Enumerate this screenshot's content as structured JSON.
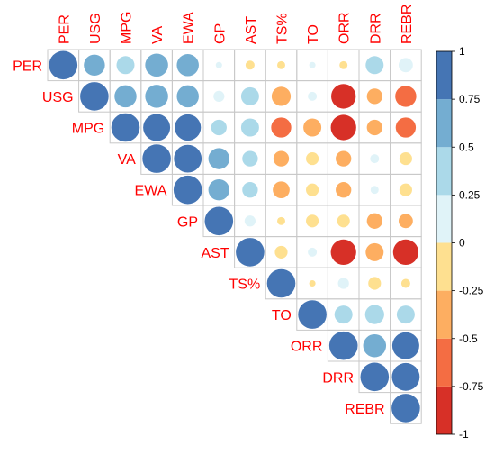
{
  "chart_data": {
    "type": "heatmap",
    "subtype": "correlation-circles-upper",
    "variables": [
      "PER",
      "USG",
      "MPG",
      "VA",
      "EWA",
      "GP",
      "AST",
      "TS%",
      "TO",
      "ORR",
      "DRR",
      "REBR"
    ],
    "matrix": [
      [
        1.0,
        0.55,
        0.4,
        0.65,
        0.6,
        0.05,
        -0.1,
        -0.08,
        0.05,
        -0.08,
        0.4,
        0.25
      ],
      [
        0.55,
        1.0,
        0.6,
        0.65,
        0.6,
        0.15,
        0.4,
        -0.45,
        0.1,
        -0.75,
        -0.3,
        -0.55
      ],
      [
        0.4,
        0.6,
        1.0,
        0.9,
        0.85,
        0.3,
        0.4,
        -0.5,
        -0.4,
        -0.8,
        -0.3,
        -0.5
      ],
      [
        0.65,
        0.65,
        0.9,
        1.0,
        0.95,
        0.55,
        0.3,
        -0.3,
        -0.2,
        -0.3,
        0.1,
        -0.2
      ],
      [
        0.6,
        0.6,
        0.85,
        0.95,
        1.0,
        0.55,
        0.3,
        -0.35,
        -0.2,
        -0.3,
        0.08,
        -0.2
      ],
      [
        0.05,
        0.15,
        0.3,
        0.55,
        0.55,
        1.0,
        0.15,
        -0.08,
        -0.2,
        -0.2,
        -0.3,
        -0.25
      ],
      [
        -0.1,
        0.4,
        0.4,
        0.3,
        0.3,
        0.15,
        1.0,
        -0.2,
        0.1,
        -0.8,
        -0.4,
        -0.8
      ],
      [
        -0.08,
        -0.45,
        -0.5,
        -0.3,
        -0.35,
        -0.08,
        -0.2,
        1.0,
        -0.05,
        0.15,
        -0.2,
        -0.1
      ],
      [
        0.05,
        0.1,
        -0.4,
        -0.2,
        -0.2,
        -0.2,
        0.1,
        -0.05,
        1.0,
        0.4,
        0.45,
        0.4
      ],
      [
        -0.08,
        -0.75,
        -0.8,
        -0.3,
        -0.3,
        -0.2,
        -0.8,
        0.15,
        0.4,
        1.0,
        0.65,
        0.9
      ],
      [
        0.4,
        -0.3,
        -0.3,
        0.1,
        0.08,
        -0.3,
        -0.4,
        -0.2,
        0.45,
        0.65,
        1.0,
        0.95
      ],
      [
        0.25,
        -0.55,
        -0.5,
        -0.2,
        -0.2,
        -0.25,
        -0.8,
        -0.1,
        0.4,
        0.9,
        0.95,
        1.0
      ]
    ],
    "color_scale": {
      "range": [
        -1,
        1
      ],
      "ticks": [
        "1",
        "0.75",
        "0.5",
        "0.25",
        "0",
        "-0.25",
        "-0.5",
        "-0.75",
        "-1"
      ],
      "bins": [
        {
          "from": -1.0,
          "to": -0.75,
          "color": "#d73027"
        },
        {
          "from": -0.75,
          "to": -0.5,
          "color": "#f46d43"
        },
        {
          "from": -0.5,
          "to": -0.25,
          "color": "#fdae61"
        },
        {
          "from": -0.25,
          "to": 0.0,
          "color": "#fee090"
        },
        {
          "from": 0.0,
          "to": 0.25,
          "color": "#e0f3f8"
        },
        {
          "from": 0.25,
          "to": 0.5,
          "color": "#abd9e9"
        },
        {
          "from": 0.5,
          "to": 0.75,
          "color": "#74add1"
        },
        {
          "from": 0.75,
          "to": 1.0,
          "color": "#4575b4"
        }
      ]
    },
    "label_color": "#ff0000",
    "grid": true,
    "legend": "right"
  }
}
